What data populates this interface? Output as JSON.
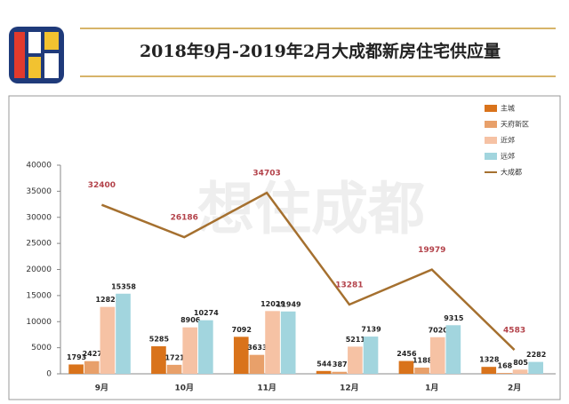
{
  "header": {
    "title": "2018年9月-2019年2月大成都新房住宅供应量"
  },
  "chart_data": {
    "type": "bar",
    "watermark": "想住成都",
    "categories": [
      "9月",
      "10月",
      "11月",
      "12月",
      "1月",
      "2月"
    ],
    "series": [
      {
        "name": "主城",
        "color": "#d9731b",
        "values": [
          1793,
          5285,
          7092,
          544,
          2456,
          1328
        ]
      },
      {
        "name": "天府新区",
        "color": "#e8a06a",
        "values": [
          2427,
          1721,
          3633,
          387,
          1188,
          168
        ]
      },
      {
        "name": "近郊",
        "color": "#f6c2a4",
        "values": [
          12822,
          8906,
          12029,
          5211,
          7020,
          805
        ]
      },
      {
        "name": "远郊",
        "color": "#a2d5de",
        "values": [
          15358,
          10274,
          11949,
          7139,
          9315,
          2282
        ]
      },
      {
        "name": "大成都",
        "color": "#a5702f",
        "type": "line",
        "values": [
          32400,
          26186,
          34703,
          13281,
          19979,
          4583
        ]
      }
    ],
    "ylim": [
      0,
      40000
    ],
    "yticks": [
      0,
      5000,
      10000,
      15000,
      20000,
      25000,
      30000,
      35000,
      40000
    ],
    "legend": "top-right"
  }
}
